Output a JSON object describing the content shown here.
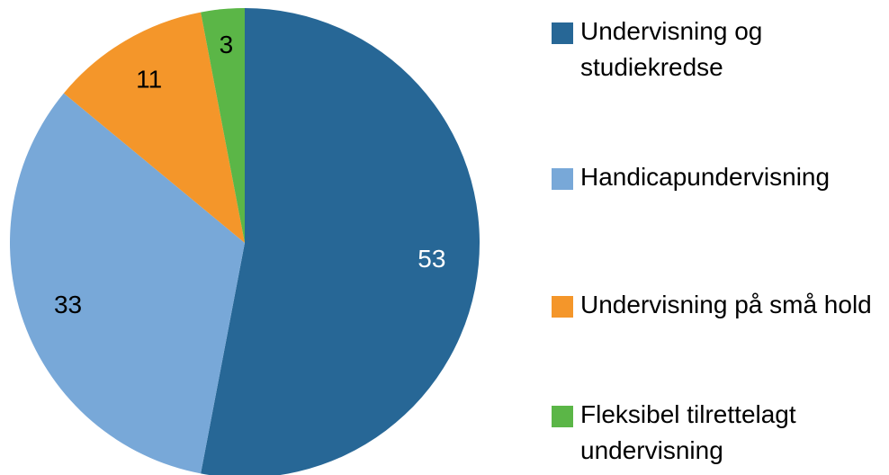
{
  "chart_data": {
    "type": "pie",
    "categories": [
      "Undervisning og studiekredse",
      "Handicapundervisning",
      "Undervisning på små hold",
      "Fleksibel tilrettelagt undervisning"
    ],
    "values": [
      53,
      33,
      11,
      3
    ],
    "colors": [
      "#276796",
      "#78a8d8",
      "#f4962a",
      "#5bb647"
    ],
    "label_colors": [
      "#ffffff",
      "#000000",
      "#000000",
      "#000000"
    ],
    "legend": "right"
  }
}
